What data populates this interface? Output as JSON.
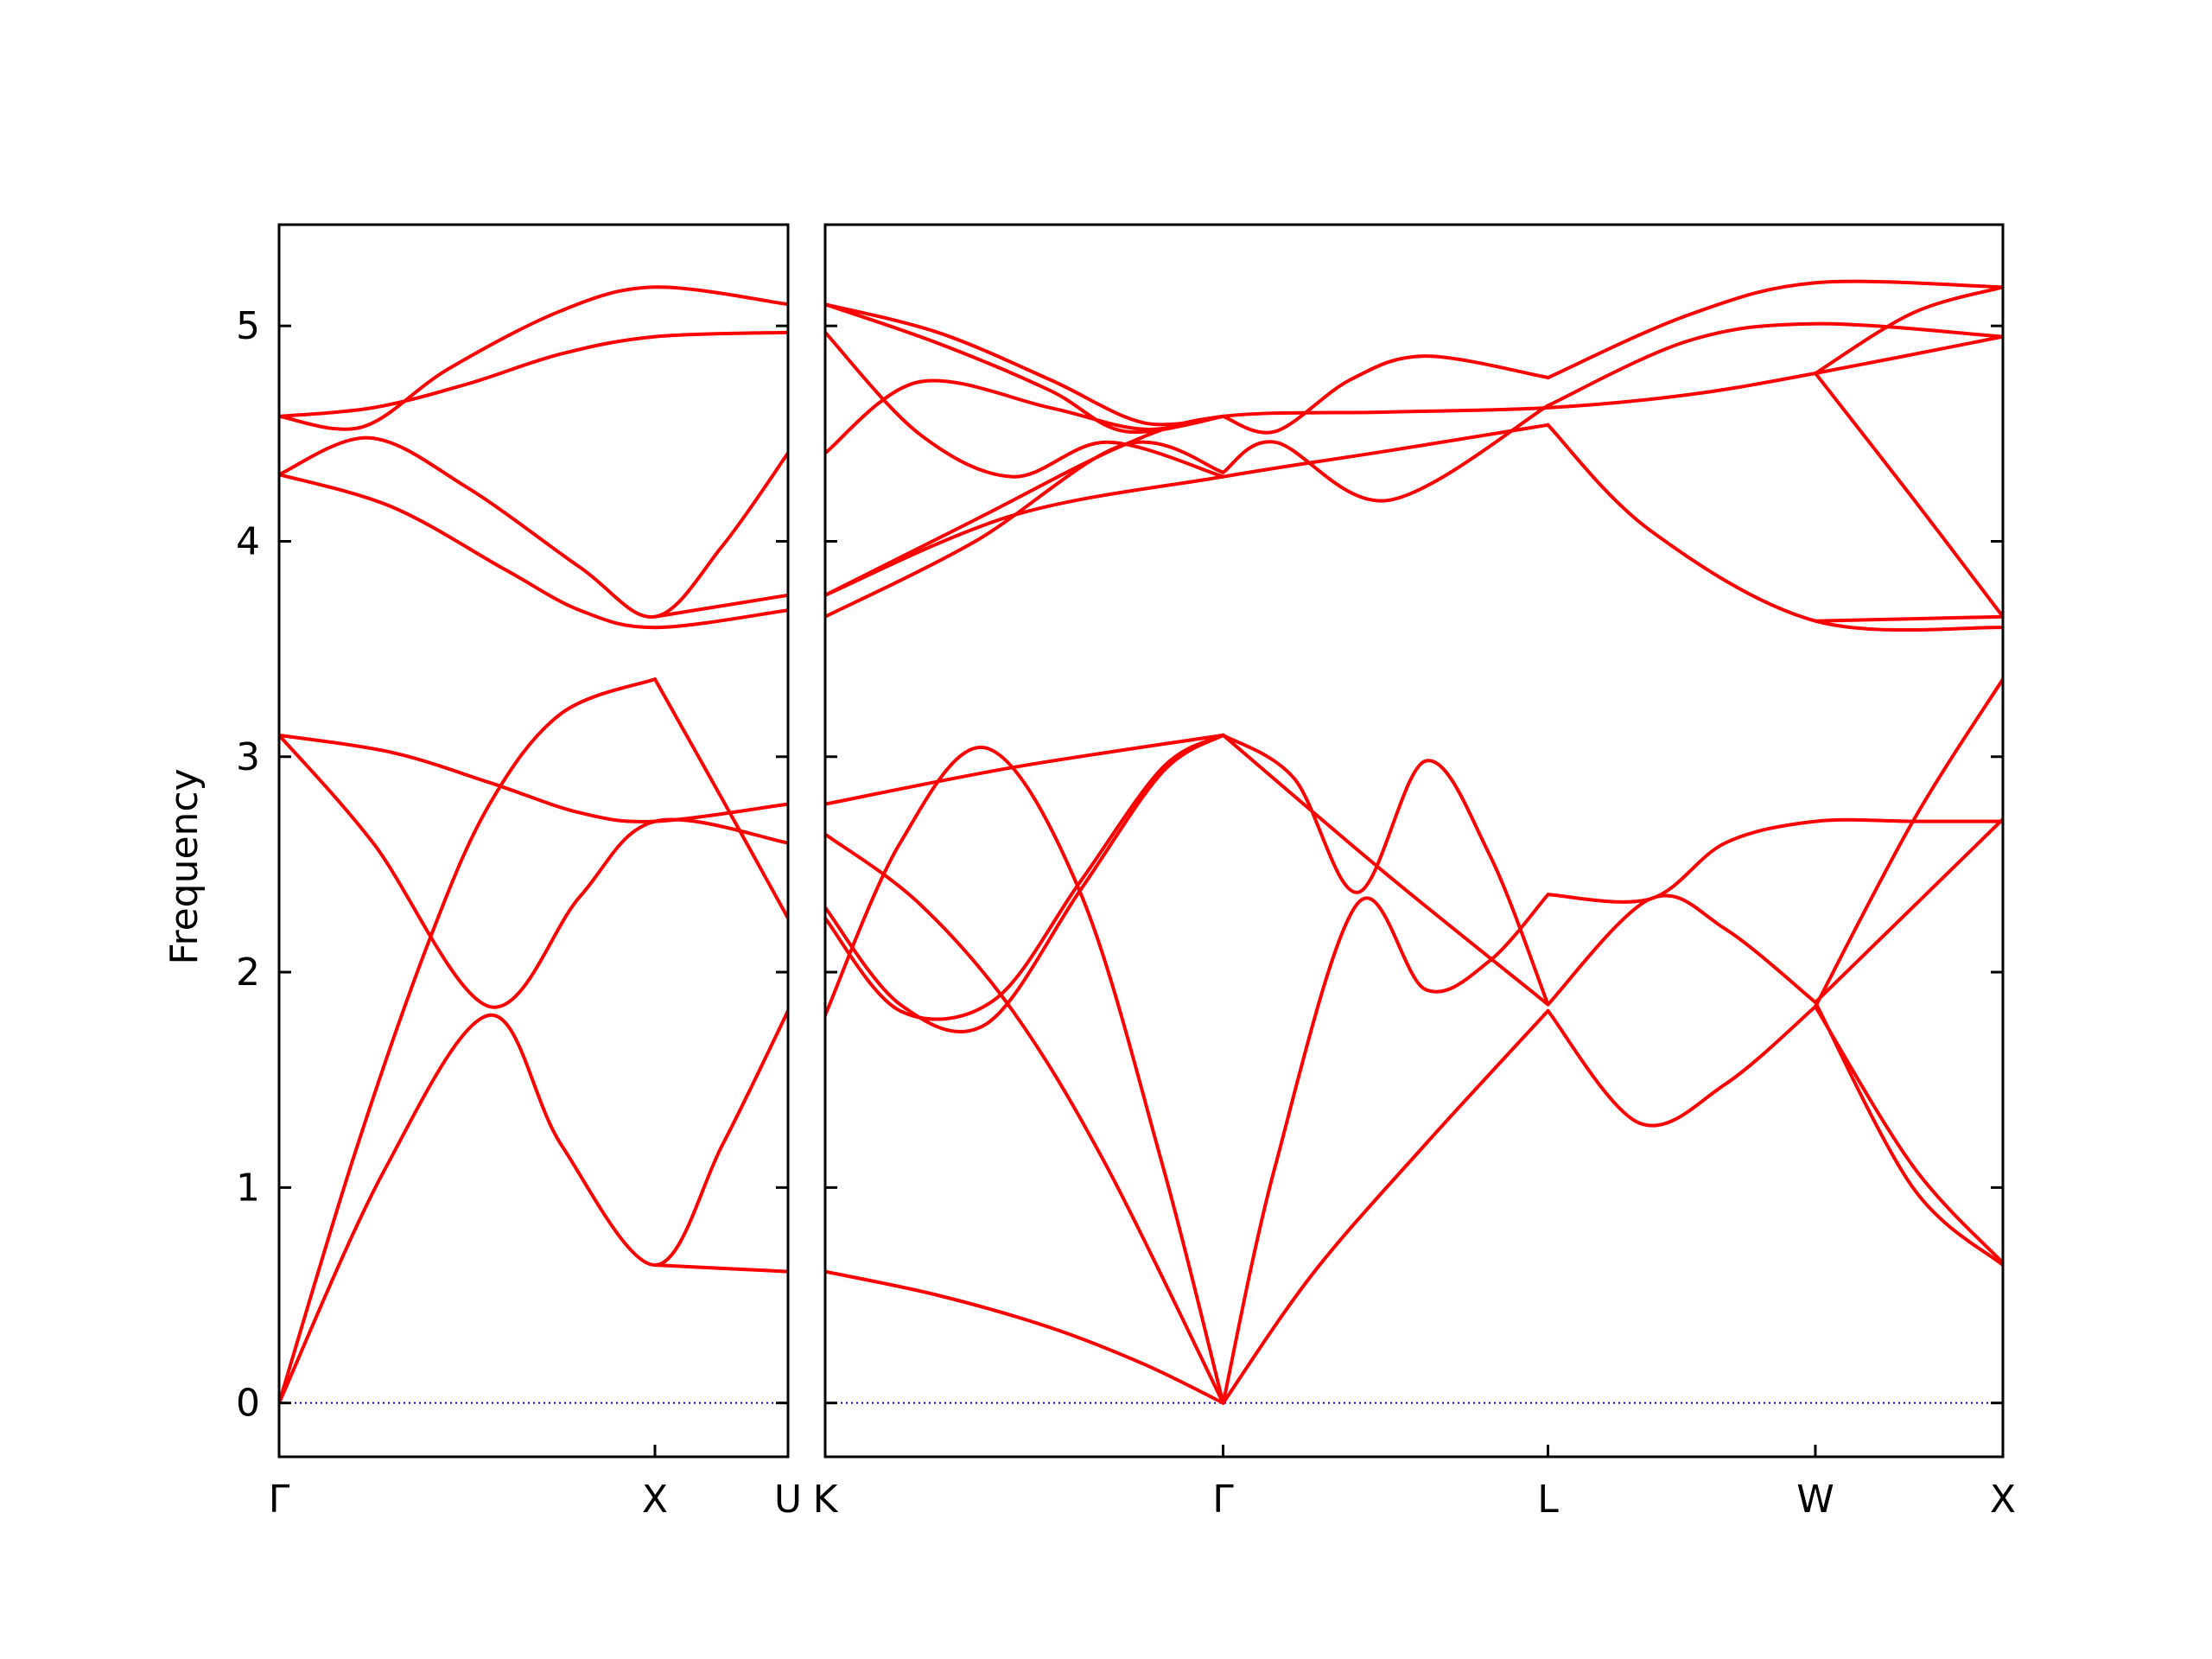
{
  "chart_data": {
    "type": "line",
    "title": "",
    "ylabel": "Frequency",
    "ylim": [
      -0.25,
      5.47
    ],
    "yticks": [
      0,
      1,
      2,
      3,
      4,
      5
    ],
    "grid": false,
    "legend": "none",
    "colors": {
      "bands": "#ff0000",
      "zero_line": "#0000ff",
      "axes": "#000000"
    },
    "panels": [
      {
        "name": "panel-gamma-x-u",
        "x_labels": [
          {
            "label": "Γ",
            "x": 0.0
          },
          {
            "label": "X",
            "x": 1.0
          },
          {
            "label": "U",
            "x": 1.354
          }
        ],
        "xlim": [
          0.0,
          1.354
        ],
        "bands": [
          {
            "x": [
              0,
              0.28,
              0.56,
              0.75,
              1.0,
              1.18,
              1.354
            ],
            "y": [
              0,
              1.08,
              1.8,
              1.2,
              0.64,
              1.2,
              1.82
            ]
          },
          {
            "x": [
              0,
              0.2,
              0.4,
              0.56,
              0.75,
              1.0
            ],
            "y": [
              0,
              1.15,
              2.15,
              2.78,
              3.2,
              3.36
            ]
          },
          {
            "x": [
              1.0,
              1.18,
              1.354
            ],
            "y": [
              3.36,
              2.8,
              2.25
            ]
          },
          {
            "x": [
              0,
              0.25,
              0.56,
              0.8,
              1.0,
              1.354
            ],
            "y": [
              3.1,
              2.6,
              1.84,
              2.35,
              2.7,
              2.6
            ]
          },
          {
            "x": [
              0,
              0.3,
              0.56,
              0.8,
              1.0,
              1.354
            ],
            "y": [
              3.1,
              3.02,
              2.88,
              2.74,
              2.7,
              2.78
            ]
          },
          {
            "x": [
              1.0,
              1.354
            ],
            "y": [
              0.64,
              0.61
            ]
          },
          {
            "x": [
              0,
              0.3,
              0.6,
              0.8,
              1.0,
              1.354
            ],
            "y": [
              4.31,
              4.16,
              3.87,
              3.68,
              3.6,
              3.68
            ]
          },
          {
            "x": [
              0,
              0.24,
              0.5,
              0.8,
              1.0,
              1.18,
              1.354
            ],
            "y": [
              4.31,
              4.48,
              4.25,
              3.88,
              3.65,
              3.98,
              4.41
            ]
          },
          {
            "x": [
              1.0,
              1.354
            ],
            "y": [
              3.65,
              3.75
            ]
          },
          {
            "x": [
              0,
              0.22,
              0.45,
              0.75,
              1.0,
              1.354
            ],
            "y": [
              4.58,
              4.53,
              4.8,
              5.07,
              5.18,
              5.1
            ]
          },
          {
            "x": [
              0,
              0.25,
              0.5,
              0.75,
              1.0,
              1.354
            ],
            "y": [
              4.58,
              4.62,
              4.73,
              4.87,
              4.95,
              4.97
            ]
          }
        ]
      },
      {
        "name": "panel-k-gamma-l-w-x",
        "x_labels": [
          {
            "label": "K",
            "x": 0.0
          },
          {
            "label": "Γ",
            "x": 1.061
          },
          {
            "label": "L",
            "x": 1.927
          },
          {
            "label": "W",
            "x": 2.64
          },
          {
            "label": "X",
            "x": 3.14
          }
        ],
        "xlim": [
          0.0,
          3.14
        ],
        "bands": [
          {
            "x": [
              0,
              0.3,
              0.6,
              0.85,
              1.061
            ],
            "y": [
              0.61,
              0.5,
              0.35,
              0.18,
              0
            ]
          },
          {
            "x": [
              0,
              0.25,
              0.5,
              0.75,
              1.061
            ],
            "y": [
              2.64,
              2.32,
              1.82,
              1.1,
              0
            ]
          },
          {
            "x": [
              0,
              0.2,
              0.43,
              0.68,
              0.9,
              1.061
            ],
            "y": [
              1.8,
              2.6,
              3.04,
              2.37,
              1.1,
              0
            ]
          },
          {
            "x": [
              0,
              0.2,
              0.43,
              0.68,
              0.9,
              1.061
            ],
            "y": [
              2.3,
              1.85,
              1.76,
              2.38,
              2.93,
              3.1
            ]
          },
          {
            "x": [
              0,
              0.2,
              0.45,
              0.68,
              0.9,
              1.061
            ],
            "y": [
              2.25,
              1.82,
              1.87,
              2.42,
              2.95,
              3.1
            ]
          },
          {
            "x": [
              0,
              0.5,
              1.061
            ],
            "y": [
              2.78,
              2.95,
              3.1
            ]
          },
          {
            "x": [
              1.061,
              1.3,
              1.6,
              1.927
            ],
            "y": [
              0,
              0.6,
              1.2,
              1.82
            ]
          },
          {
            "x": [
              1.061,
              1.2,
              1.42,
              1.6,
              1.77,
              1.927
            ],
            "y": [
              0,
              1.1,
              2.32,
              1.92,
              2.05,
              2.36
            ]
          },
          {
            "x": [
              1.061,
              1.25,
              1.42,
              1.6,
              1.77,
              1.927
            ],
            "y": [
              3.1,
              2.9,
              2.37,
              2.98,
              2.55,
              1.85
            ]
          },
          {
            "x": [
              1.061,
              1.5,
              1.927
            ],
            "y": [
              3.1,
              2.45,
              1.85
            ]
          },
          {
            "x": [
              1.927,
              2.17,
              2.4,
              2.64
            ],
            "y": [
              1.82,
              1.3,
              1.48,
              1.84
            ]
          },
          {
            "x": [
              1.927,
              2.2,
              2.4,
              2.64,
              2.9,
              3.14
            ],
            "y": [
              2.36,
              2.34,
              2.6,
              2.7,
              2.7,
              2.7
            ]
          },
          {
            "x": [
              1.927,
              2.2,
              2.4,
              2.64
            ],
            "y": [
              1.85,
              2.34,
              2.2,
              1.86
            ]
          },
          {
            "x": [
              2.64,
              2.9,
              3.14
            ],
            "y": [
              1.86,
              1.0,
              0.64
            ]
          },
          {
            "x": [
              2.64,
              2.9,
              3.14
            ],
            "y": [
              1.84,
              1.1,
              0.65
            ]
          },
          {
            "x": [
              2.64,
              2.9,
              3.14
            ],
            "y": [
              1.84,
              2.7,
              3.36
            ]
          },
          {
            "x": [
              2.64,
              3.14
            ],
            "y": [
              1.86,
              2.71
            ]
          },
          {
            "x": [
              0,
              0.4,
              0.8,
              1.061,
              1.5,
              1.927,
              2.3,
              2.64,
              3.14
            ],
            "y": [
              3.75,
              4.1,
              4.45,
              4.58,
              4.6,
              4.62,
              4.68,
              4.78,
              4.95
            ]
          },
          {
            "x": [
              0,
              0.4,
              0.8,
              1.061
            ],
            "y": [
              3.65,
              4.0,
              4.45,
              4.32
            ]
          },
          {
            "x": [
              0,
              0.5,
              1.061,
              1.5,
              1.927
            ],
            "y": [
              3.75,
              4.12,
              4.3,
              4.42,
              4.54
            ]
          },
          {
            "x": [
              0,
              0.25,
              0.6,
              0.85,
              1.061
            ],
            "y": [
              4.41,
              4.74,
              4.62,
              4.52,
              4.58
            ]
          },
          {
            "x": [
              0,
              0.25,
              0.5,
              0.75,
              1.061
            ],
            "y": [
              4.97,
              4.5,
              4.3,
              4.46,
              4.3
            ]
          },
          {
            "x": [
              0,
              0.3,
              0.6,
              0.85,
              1.061
            ],
            "y": [
              5.1,
              4.97,
              4.75,
              4.55,
              4.58
            ]
          },
          {
            "x": [
              0,
              0.3,
              0.6,
              0.8,
              1.061
            ],
            "y": [
              5.1,
              4.92,
              4.7,
              4.51,
              4.58
            ]
          },
          {
            "x": [
              1.061,
              1.2,
              1.5,
              1.927
            ],
            "y": [
              4.32,
              4.46,
              4.19,
              4.63
            ]
          },
          {
            "x": [
              1.061,
              1.2,
              1.4,
              1.6,
              1.927
            ],
            "y": [
              4.58,
              4.51,
              4.75,
              4.86,
              4.76
            ]
          },
          {
            "x": [
              1.927,
              2.2,
              2.64,
              3.14
            ],
            "y": [
              4.54,
              4.05,
              3.63,
              3.6
            ]
          },
          {
            "x": [
              1.927,
              2.3,
              2.64,
              3.14
            ],
            "y": [
              4.76,
              5.05,
              5.2,
              5.18
            ]
          },
          {
            "x": [
              1.927,
              2.3,
              2.64,
              3.14
            ],
            "y": [
              4.63,
              4.93,
              5.01,
              4.95
            ]
          },
          {
            "x": [
              2.64,
              2.9,
              3.14
            ],
            "y": [
              4.78,
              5.06,
              5.18
            ]
          },
          {
            "x": [
              2.64,
              2.9,
              3.14
            ],
            "y": [
              4.78,
              4.2,
              3.65
            ]
          },
          {
            "x": [
              2.64,
              3.14
            ],
            "y": [
              3.63,
              3.65
            ]
          }
        ]
      }
    ]
  }
}
